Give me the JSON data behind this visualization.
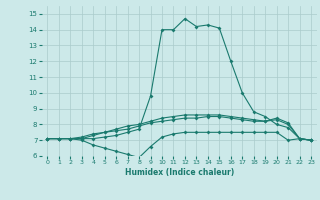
{
  "title": "",
  "xlabel": "Humidex (Indice chaleur)",
  "bg_color": "#cce9e9",
  "line_color": "#1a7a6e",
  "grid_color": "#aacccc",
  "xlim": [
    -0.5,
    23.5
  ],
  "ylim": [
    6,
    15.5
  ],
  "xticks": [
    0,
    1,
    2,
    3,
    4,
    5,
    6,
    7,
    8,
    9,
    10,
    11,
    12,
    13,
    14,
    15,
    16,
    17,
    18,
    19,
    20,
    21,
    22,
    23
  ],
  "yticks": [
    6,
    7,
    8,
    9,
    10,
    11,
    12,
    13,
    14,
    15
  ],
  "curve1_x": [
    0,
    1,
    2,
    3,
    4,
    5,
    6,
    7,
    8,
    9,
    10,
    11,
    12,
    13,
    14,
    15,
    16,
    17,
    18,
    19,
    20,
    21,
    22,
    23
  ],
  "curve1_y": [
    7.1,
    7.1,
    7.1,
    7.1,
    7.1,
    7.2,
    7.3,
    7.5,
    7.7,
    9.8,
    14.0,
    14.0,
    14.7,
    14.2,
    14.3,
    14.1,
    12.0,
    10.0,
    8.8,
    8.5,
    8.0,
    7.8,
    7.1,
    7.0
  ],
  "curve2_x": [
    0,
    1,
    2,
    3,
    4,
    5,
    6,
    7,
    8,
    9,
    10,
    11,
    12,
    13,
    14,
    15,
    16,
    17,
    18,
    19,
    20,
    21,
    22,
    23
  ],
  "curve2_y": [
    7.1,
    7.1,
    7.1,
    7.2,
    7.4,
    7.5,
    7.6,
    7.7,
    7.9,
    8.1,
    8.2,
    8.3,
    8.4,
    8.4,
    8.5,
    8.5,
    8.4,
    8.3,
    8.2,
    8.2,
    8.4,
    8.1,
    7.1,
    7.0
  ],
  "curve3_x": [
    0,
    1,
    2,
    3,
    4,
    5,
    6,
    7,
    8,
    9,
    10,
    11,
    12,
    13,
    14,
    15,
    16,
    17,
    18,
    19,
    20,
    21,
    22,
    23
  ],
  "curve3_y": [
    7.1,
    7.1,
    7.1,
    7.0,
    6.7,
    6.5,
    6.3,
    6.1,
    5.9,
    6.6,
    7.2,
    7.4,
    7.5,
    7.5,
    7.5,
    7.5,
    7.5,
    7.5,
    7.5,
    7.5,
    7.5,
    7.0,
    7.1,
    7.0
  ],
  "curve4_x": [
    0,
    1,
    2,
    3,
    4,
    5,
    6,
    7,
    8,
    9,
    10,
    11,
    12,
    13,
    14,
    15,
    16,
    17,
    18,
    19,
    20,
    21,
    22,
    23
  ],
  "curve4_y": [
    7.1,
    7.1,
    7.1,
    7.1,
    7.3,
    7.5,
    7.7,
    7.9,
    8.0,
    8.2,
    8.4,
    8.5,
    8.6,
    8.6,
    8.6,
    8.6,
    8.5,
    8.4,
    8.3,
    8.2,
    8.3,
    8.0,
    7.1,
    7.0
  ]
}
